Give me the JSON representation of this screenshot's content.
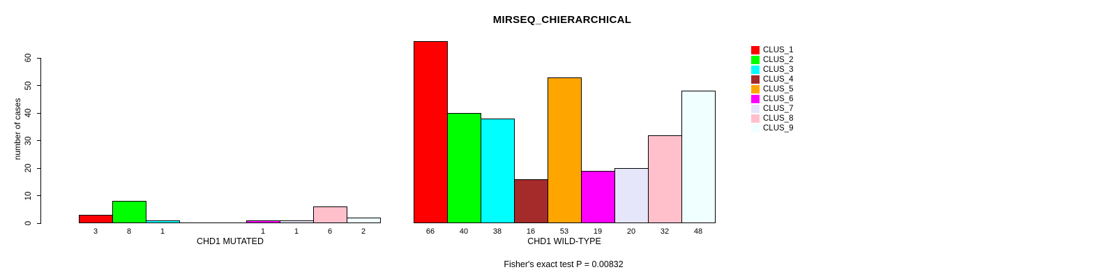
{
  "chart_data": {
    "type": "bar",
    "title": "MIRSEQ_CHIERARCHICAL",
    "ylabel": "number of cases",
    "annotation": "Fisher's exact test P = 0.00832",
    "ylim": [
      0,
      60
    ],
    "yticks": [
      0,
      10,
      20,
      30,
      40,
      50,
      60
    ],
    "grid": false,
    "legend_position": "right",
    "categories": [
      "CLUS_1",
      "CLUS_2",
      "CLUS_3",
      "CLUS_4",
      "CLUS_5",
      "CLUS_6",
      "CLUS_7",
      "CLUS_8",
      "CLUS_9"
    ],
    "series_colors": [
      "#FF0000",
      "#00FF00",
      "#00FFFF",
      "#A52A2A",
      "#FFA500",
      "#FF00FF",
      "#E6E6FA",
      "#FFC0CB",
      "#F0FFFF"
    ],
    "groups": [
      {
        "label": "CHD1 MUTATED",
        "values": [
          3,
          8,
          1,
          0,
          0,
          1,
          1,
          6,
          2
        ]
      },
      {
        "label": "CHD1 WILD-TYPE",
        "values": [
          66,
          40,
          38,
          16,
          53,
          19,
          20,
          32,
          48
        ]
      }
    ],
    "bar_value_labels_hidden_for_zero": true,
    "legend": {
      "entries": [
        {
          "label": "CLUS_1",
          "color": "#FF0000"
        },
        {
          "label": "CLUS_2",
          "color": "#00FF00"
        },
        {
          "label": "CLUS_3",
          "color": "#00FFFF"
        },
        {
          "label": "CLUS_4",
          "color": "#A52A2A"
        },
        {
          "label": "CLUS_5",
          "color": "#FFA500"
        },
        {
          "label": "CLUS_6",
          "color": "#FF00FF"
        },
        {
          "label": "CLUS_7",
          "color": "#E6E6FA"
        },
        {
          "label": "CLUS_8",
          "color": "#FFC0CB"
        },
        {
          "label": "CLUS_9",
          "color": "#F0FFFF"
        }
      ]
    }
  }
}
